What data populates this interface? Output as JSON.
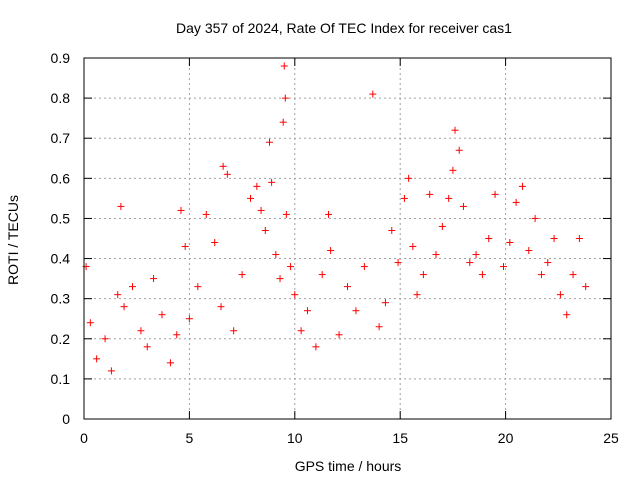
{
  "chart_data": {
    "type": "scatter",
    "title": "Day 357 of 2024, Rate Of TEC Index for receiver cas1",
    "xlabel": "GPS time / hours",
    "ylabel": "ROTI / TECUs",
    "xlim": [
      0,
      25
    ],
    "ylim": [
      0,
      0.9
    ],
    "x_ticks": [
      0,
      5,
      10,
      15,
      20,
      25
    ],
    "y_ticks": [
      0,
      0.1,
      0.2,
      0.3,
      0.4,
      0.5,
      0.6,
      0.7,
      0.8,
      0.9
    ],
    "x_tick_labels": [
      "0",
      "5",
      "10",
      "15",
      "20",
      "25"
    ],
    "y_tick_labels": [
      "0",
      "0.1",
      "0.2",
      "0.3",
      "0.4",
      "0.5",
      "0.6",
      "0.7",
      "0.8",
      "0.9"
    ],
    "grid": true,
    "legend": "none",
    "marker": "+",
    "color": "#ff0000",
    "series": [
      {
        "x": [
          0.1,
          0.3,
          0.6,
          1.0,
          1.3,
          1.6,
          1.75,
          1.9,
          2.3,
          2.7,
          3.0,
          3.3,
          3.7,
          4.1,
          4.4,
          4.6,
          4.8,
          5.0,
          5.4,
          5.8,
          6.2,
          6.5,
          6.6,
          6.8,
          7.1,
          7.5,
          7.9,
          8.2,
          8.4,
          8.6,
          8.8,
          8.9,
          9.1,
          9.3,
          9.45,
          9.5,
          9.55,
          9.6,
          9.8,
          10.0,
          10.3,
          10.6,
          11.0,
          11.3,
          11.6,
          11.7,
          12.1,
          12.5,
          12.9,
          13.3,
          13.7,
          14.0,
          14.3,
          14.6,
          14.9,
          15.2,
          15.4,
          15.6,
          15.8,
          16.1,
          16.4,
          16.7,
          17.0,
          17.3,
          17.5,
          17.6,
          17.8,
          18.0,
          18.3,
          18.6,
          18.9,
          19.2,
          19.5,
          19.9,
          20.2,
          20.5,
          20.8,
          21.1,
          21.4,
          21.7,
          22.0,
          22.3,
          22.6,
          22.9,
          23.2,
          23.5,
          23.8
        ],
        "y": [
          0.38,
          0.24,
          0.15,
          0.2,
          0.12,
          0.31,
          0.53,
          0.28,
          0.33,
          0.22,
          0.18,
          0.35,
          0.26,
          0.14,
          0.21,
          0.52,
          0.43,
          0.25,
          0.33,
          0.51,
          0.44,
          0.28,
          0.63,
          0.61,
          0.22,
          0.36,
          0.55,
          0.58,
          0.52,
          0.47,
          0.69,
          0.59,
          0.41,
          0.35,
          0.74,
          0.88,
          0.8,
          0.51,
          0.38,
          0.31,
          0.22,
          0.27,
          0.18,
          0.36,
          0.51,
          0.42,
          0.21,
          0.33,
          0.27,
          0.38,
          0.81,
          0.23,
          0.29,
          0.47,
          0.39,
          0.55,
          0.6,
          0.43,
          0.31,
          0.36,
          0.56,
          0.41,
          0.48,
          0.55,
          0.62,
          0.72,
          0.67,
          0.53,
          0.39,
          0.41,
          0.36,
          0.45,
          0.56,
          0.38,
          0.44,
          0.54,
          0.58,
          0.42,
          0.5,
          0.36,
          0.39,
          0.45,
          0.31,
          0.26,
          0.36,
          0.45,
          0.33
        ]
      }
    ]
  }
}
